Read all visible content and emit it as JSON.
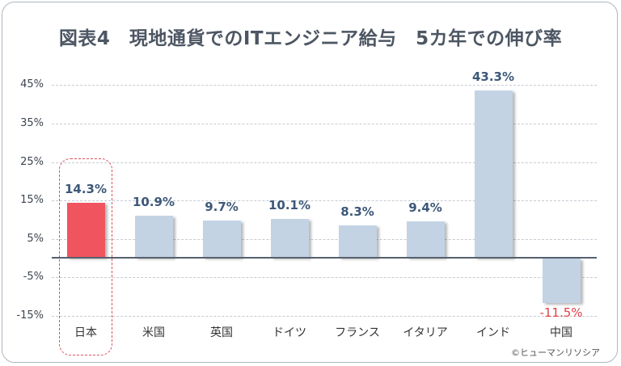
{
  "title": "図表4　現地通貨でのITエンジニア給与　5カ年での伸び率",
  "credit": "©ヒューマンリソシア",
  "colors": {
    "highlight_bar": "#f0545f",
    "normal_bar": "#c3d3e4",
    "value_label": "#3d5878",
    "negative_label": "#e0404a",
    "title": "#4d5663",
    "highlight_box": "#dd5060"
  },
  "y_ticks": [
    "45%",
    "35%",
    "25%",
    "15%",
    "5%",
    "-5%",
    "-15%"
  ],
  "chart_data": {
    "type": "bar",
    "title": "図表4　現地通貨でのITエンジニア給与　5カ年での伸び率",
    "xlabel": "",
    "ylabel": "",
    "categories": [
      "日本",
      "米国",
      "英国",
      "ドイツ",
      "フランス",
      "イタリア",
      "インド",
      "中国"
    ],
    "values": [
      14.3,
      10.9,
      9.7,
      10.1,
      8.3,
      9.4,
      43.3,
      -11.5
    ],
    "value_labels": [
      "14.3%",
      "10.9%",
      "9.7%",
      "10.1%",
      "8.3%",
      "9.4%",
      "43.3%",
      "-11.5%"
    ],
    "unit": "%",
    "ylim": [
      -15,
      45
    ],
    "y_tick_values": [
      45,
      35,
      25,
      15,
      5,
      -5,
      -15
    ],
    "grid": true,
    "legend": null,
    "highlighted_category": "日本",
    "annotations": [
      "©ヒューマンリソシア"
    ]
  }
}
